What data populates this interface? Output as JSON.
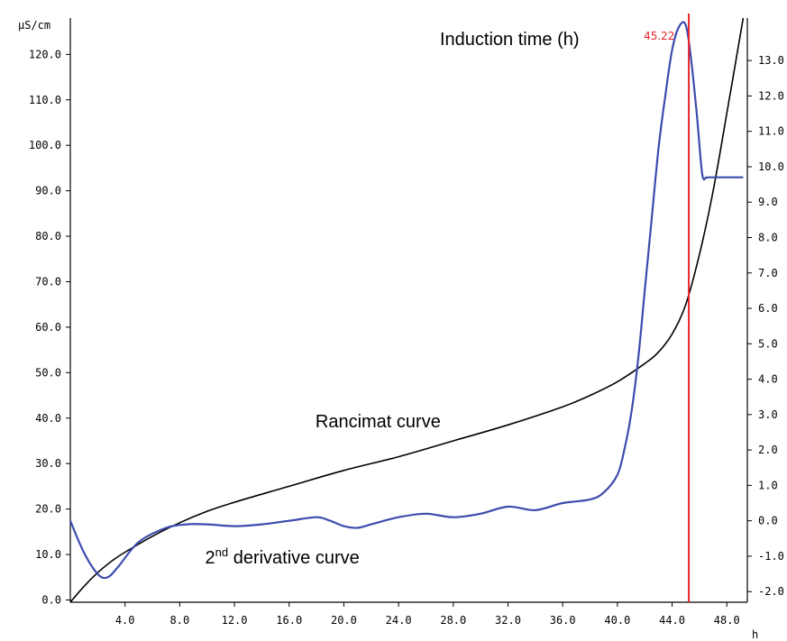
{
  "chart_data": {
    "type": "line",
    "x_unit": "h",
    "xlim": [
      0,
      49.5
    ],
    "x_ticks": [
      "4.0",
      "8.0",
      "12.0",
      "16.0",
      "20.0",
      "24.0",
      "28.0",
      "32.0",
      "36.0",
      "40.0",
      "44.0",
      "48.0"
    ],
    "y_left": {
      "unit": "µS/cm",
      "ylim": [
        -0.5,
        128
      ],
      "ticks": [
        "0.0",
        "10.0",
        "20.0",
        "30.0",
        "40.0",
        "50.0",
        "60.0",
        "70.0",
        "80.0",
        "90.0",
        "100.0",
        "110.0",
        "120.0"
      ]
    },
    "y_right": {
      "ylim": [
        -2.3,
        14.2
      ],
      "ticks": [
        "-2.0",
        "-1.0",
        "0.0",
        "1.0",
        "2.0",
        "3.0",
        "4.0",
        "5.0",
        "6.0",
        "7.0",
        "8.0",
        "9.0",
        "10.0",
        "11.0",
        "12.0",
        "13.0"
      ]
    },
    "series": [
      {
        "label": "Rancimat curve",
        "axis": "left",
        "color": "#000000",
        "x": [
          0,
          1,
          2,
          3,
          4,
          6,
          8,
          10,
          12,
          16,
          20,
          24,
          28,
          32,
          36,
          38,
          40,
          42,
          43,
          44,
          45,
          46,
          47,
          48,
          49.2
        ],
        "y": [
          -0.5,
          3,
          6,
          8.5,
          10.5,
          14,
          17,
          19.5,
          21.5,
          25,
          28.5,
          31.5,
          35,
          38.5,
          42.5,
          45,
          48,
          52,
          54.5,
          58.5,
          65,
          76,
          90,
          107,
          128
        ]
      },
      {
        "label": "2nd derivative curve",
        "axis": "right",
        "color": "#3d4bac",
        "x": [
          0,
          1,
          2,
          2.7,
          3.5,
          5,
          7,
          8.5,
          10,
          12,
          14,
          16,
          18,
          19,
          20,
          21,
          22,
          24,
          26,
          28,
          30,
          32,
          34,
          36,
          38,
          39,
          40,
          40.5,
          41,
          41.5,
          42,
          42.5,
          43,
          43.5,
          44,
          44.5,
          45.0,
          45.4,
          45.8,
          46.2,
          46.5,
          46.7,
          47,
          49.2
        ],
        "y": [
          0.0,
          -0.9,
          -1.5,
          -1.6,
          -1.3,
          -0.6,
          -0.2,
          -0.1,
          -0.1,
          -0.15,
          -0.1,
          0.0,
          0.1,
          0.0,
          -0.15,
          -0.2,
          -0.1,
          0.1,
          0.2,
          0.1,
          0.2,
          0.4,
          0.3,
          0.5,
          0.6,
          0.8,
          1.3,
          2.0,
          3.0,
          4.5,
          6.5,
          8.5,
          10.5,
          12.0,
          13.3,
          13.95,
          14.0,
          13.0,
          11.5,
          9.8,
          9.7,
          9.7,
          9.7,
          9.7
        ]
      }
    ],
    "induction_time": {
      "label": "Induction time (h)",
      "value": 45.22,
      "display": "45.22",
      "color": "#e8232a"
    },
    "annotations": {
      "rancimat": {
        "text": "Rancimat curve",
        "x": 22.5,
        "y": 38
      },
      "derivative": {
        "main": "2",
        "sup": "nd",
        "rest": " derivative curve",
        "x": 15.5,
        "y": -1.2
      }
    }
  }
}
